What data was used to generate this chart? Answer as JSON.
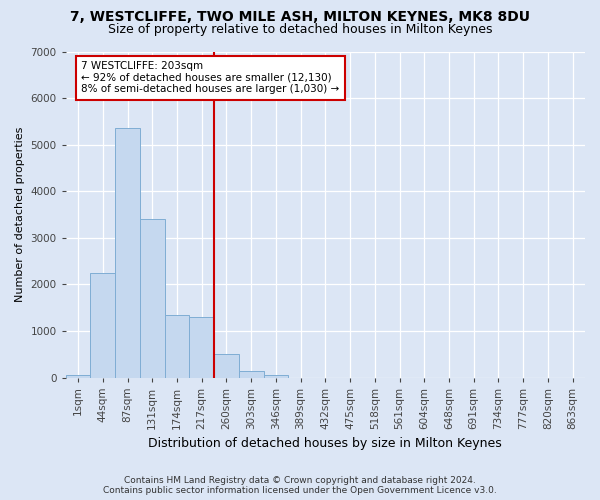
{
  "title": "7, WESTCLIFFE, TWO MILE ASH, MILTON KEYNES, MK8 8DU",
  "subtitle": "Size of property relative to detached houses in Milton Keynes",
  "xlabel": "Distribution of detached houses by size in Milton Keynes",
  "ylabel": "Number of detached properties",
  "footer_line1": "Contains HM Land Registry data © Crown copyright and database right 2024.",
  "footer_line2": "Contains public sector information licensed under the Open Government Licence v3.0.",
  "categories": [
    "1sqm",
    "44sqm",
    "87sqm",
    "131sqm",
    "174sqm",
    "217sqm",
    "260sqm",
    "303sqm",
    "346sqm",
    "389sqm",
    "432sqm",
    "475sqm",
    "518sqm",
    "561sqm",
    "604sqm",
    "648sqm",
    "691sqm",
    "734sqm",
    "777sqm",
    "820sqm",
    "863sqm"
  ],
  "values": [
    50,
    2250,
    5350,
    3400,
    1350,
    1300,
    500,
    150,
    60,
    0,
    0,
    0,
    0,
    0,
    0,
    0,
    0,
    0,
    0,
    0,
    0
  ],
  "bar_color": "#c5d8ef",
  "bar_edge_color": "#7fadd4",
  "vline_x": 5.5,
  "annotation_text": "7 WESTCLIFFE: 203sqm\n← 92% of detached houses are smaller (12,130)\n8% of semi-detached houses are larger (1,030) →",
  "annotation_box_color": "#ffffff",
  "annotation_box_edge_color": "#cc0000",
  "vline_color": "#cc0000",
  "ylim": [
    0,
    7000
  ],
  "yticks": [
    0,
    1000,
    2000,
    3000,
    4000,
    5000,
    6000,
    7000
  ],
  "background_color": "#dce6f5",
  "plot_background": "#dce6f5",
  "title_fontsize": 10,
  "subtitle_fontsize": 9,
  "xlabel_fontsize": 9,
  "ylabel_fontsize": 8,
  "tick_fontsize": 7.5,
  "footer_fontsize": 6.5
}
